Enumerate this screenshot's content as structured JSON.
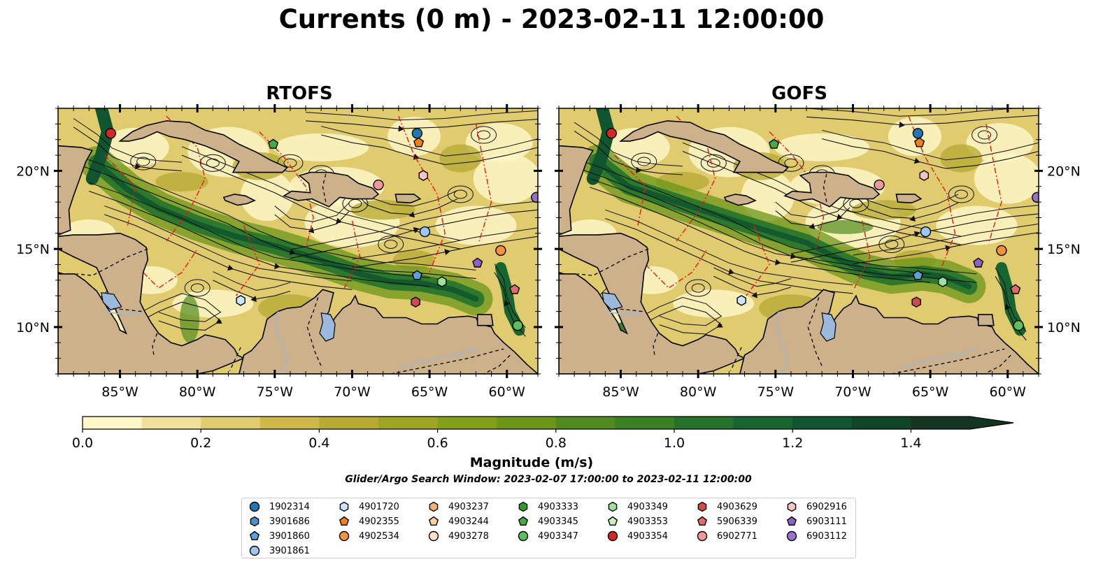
{
  "title": "Currents (0 m) - 2023-02-11 12:00:00",
  "panels": [
    {
      "title": "RTOFS"
    },
    {
      "title": "GOFS"
    }
  ],
  "map": {
    "lon_range": [
      -89,
      -58
    ],
    "lat_range": [
      7,
      24
    ],
    "lon_ticks": [
      "85°W",
      "80°W",
      "75°W",
      "70°W",
      "65°W",
      "60°W"
    ],
    "lat_ticks": [
      "20°N",
      "15°N",
      "10°N"
    ],
    "land_color": "#cdb18a",
    "lake_color": "#9bb8dd"
  },
  "chart_data": {
    "type": "heatmap",
    "colorbar": {
      "label": "Magnitude (m/s)",
      "range": [
        0,
        1.5
      ],
      "step": 0.1,
      "ticks": [
        "0.0",
        "0.2",
        "0.4",
        "0.6",
        "0.8",
        "1.0",
        "1.2",
        "1.4"
      ],
      "extend": "max",
      "colors": [
        "#fdf6c6",
        "#f0e09c",
        "#e0cb6e",
        "#cdb849",
        "#b8ab35",
        "#9ea524",
        "#84a01b",
        "#6b961a",
        "#518b1f",
        "#3a8024",
        "#25732b",
        "#176530",
        "#10552f",
        "#114528",
        "#14351f"
      ]
    },
    "floats": [
      {
        "id": "1902314",
        "marker": "circle",
        "color": "#1f77b4",
        "lon": -65.8,
        "lat": 22.4
      },
      {
        "id": "3901686",
        "marker": "hexagon",
        "color": "#4f8ec7",
        "lon": null,
        "lat": null
      },
      {
        "id": "3901860",
        "marker": "pentagon",
        "color": "#5da1dc",
        "lon": -65.8,
        "lat": 13.3
      },
      {
        "id": "3901861",
        "marker": "circle",
        "color": "#9dc7ef",
        "lon": -65.3,
        "lat": 16.1
      },
      {
        "id": "4901720",
        "marker": "hexagon",
        "color": "#cde6fb",
        "lon": -77.2,
        "lat": 11.7
      },
      {
        "id": "4902355",
        "marker": "pentagon",
        "color": "#f57f17",
        "lon": -65.7,
        "lat": 21.8
      },
      {
        "id": "4902534",
        "marker": "circle",
        "color": "#f5923a",
        "lon": -60.4,
        "lat": 14.9
      },
      {
        "id": "4903237",
        "marker": "hexagon",
        "color": "#f7b074",
        "lon": null,
        "lat": null
      },
      {
        "id": "4903244",
        "marker": "pentagon",
        "color": "#fbcfa0",
        "lon": null,
        "lat": null
      },
      {
        "id": "4903278",
        "marker": "circle",
        "color": "#fde0c6",
        "lon": null,
        "lat": null
      },
      {
        "id": "4903333",
        "marker": "hexagon",
        "color": "#2ca02c",
        "lon": null,
        "lat": null
      },
      {
        "id": "4903345",
        "marker": "pentagon",
        "color": "#43ad43",
        "lon": null,
        "lat": null
      },
      {
        "id": "4903347",
        "marker": "circle",
        "color": "#5cbf5c",
        "lon": -59.3,
        "lat": 10.1
      },
      {
        "id": "4903349",
        "marker": "hexagon",
        "color": "#9be09b",
        "lon": -64.2,
        "lat": 12.9
      },
      {
        "id": "4903353",
        "marker": "pentagon",
        "color": "#c9eec0",
        "lon": null,
        "lat": null
      },
      {
        "id": "4903354",
        "marker": "circle",
        "color": "#d62728",
        "lon": -85.6,
        "lat": 22.4
      },
      {
        "id": "4903629",
        "marker": "hexagon",
        "color": "#d04a4a",
        "lon": -65.9,
        "lat": 11.6
      },
      {
        "id": "5906339",
        "marker": "pentagon",
        "color": "#e06b6b",
        "lon": -59.5,
        "lat": 12.4
      },
      {
        "id": "6902771",
        "marker": "circle",
        "color": "#ee9a9a",
        "lon": -68.3,
        "lat": 19.1
      },
      {
        "id": "6902916",
        "marker": "hexagon",
        "color": "#f7c3c3",
        "lon": -65.4,
        "lat": 19.7
      },
      {
        "id": "6903111",
        "marker": "pentagon",
        "color": "#8d62c4",
        "lon": -61.9,
        "lat": 14.1
      },
      {
        "id": "6903112",
        "marker": "circle",
        "color": "#9a70cf",
        "lon": -58.1,
        "lat": 18.3
      }
    ],
    "float_overrides_gofs": {
      "4903345": {
        "lon": -75.1,
        "lat": 21.7
      }
    }
  },
  "labels": {
    "search_window": "Glider/Argo Search Window: 2023-02-07 17:00:00 to 2023-02-11 12:00:00"
  }
}
